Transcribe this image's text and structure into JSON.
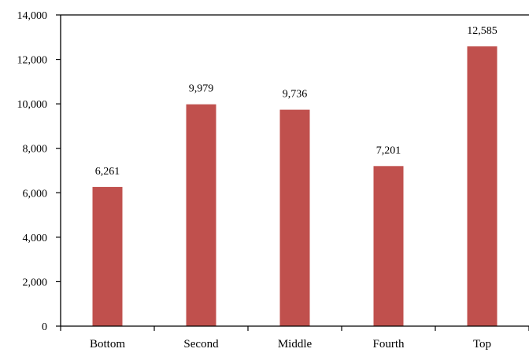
{
  "chart_data": {
    "type": "bar",
    "categories": [
      "Bottom",
      "Second",
      "Middle",
      "Fourth",
      "Top"
    ],
    "values": [
      6261,
      9979,
      9736,
      7201,
      12585
    ],
    "data_labels": [
      "6,261",
      "9,979",
      "9,736",
      "7,201",
      "12,585"
    ],
    "title": "",
    "xlabel": "",
    "ylabel": "",
    "ylim": [
      0,
      14000
    ],
    "yticks": [
      0,
      2000,
      4000,
      6000,
      8000,
      10000,
      12000,
      14000
    ],
    "ytick_labels": [
      "0",
      "2,000",
      "4,000",
      "6,000",
      "8,000",
      "10,000",
      "12,000",
      "14,000"
    ],
    "grid": false,
    "legend": "none",
    "bar_color": "#c0504d"
  }
}
